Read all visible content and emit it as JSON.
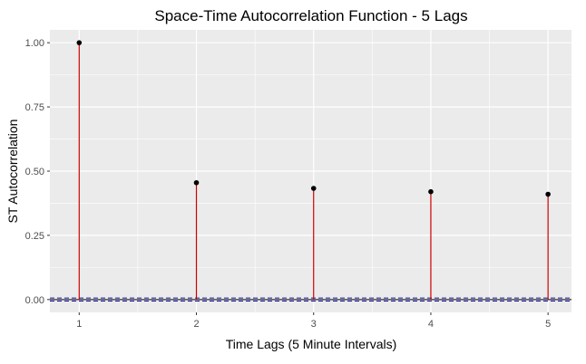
{
  "chart_data": {
    "type": "scatter",
    "style": "lollipop",
    "title": "Space-Time Autocorrelation Function - 5 Lags",
    "xlabel": "Time Lags (5 Minute Intervals)",
    "ylabel": "ST Autocorrelation",
    "x": [
      1,
      2,
      3,
      4,
      5
    ],
    "values": [
      1.0,
      0.455,
      0.433,
      0.42,
      0.41
    ],
    "xlim": [
      0.75,
      5.2
    ],
    "ylim": [
      -0.05,
      1.05
    ],
    "x_ticks": [
      "1",
      "2",
      "3",
      "4",
      "5"
    ],
    "y_ticks": [
      "0.00",
      "0.25",
      "0.50",
      "0.75",
      "1.00"
    ],
    "confidence_bounds": [
      -0.006,
      0.006
    ],
    "grid": true,
    "colors": {
      "panel_bg": "#ebebeb",
      "grid": "#ffffff",
      "stem": "#cc0000",
      "point": "#000000",
      "zero_line": "#000000",
      "bound_line": "#1a1aa6"
    }
  }
}
